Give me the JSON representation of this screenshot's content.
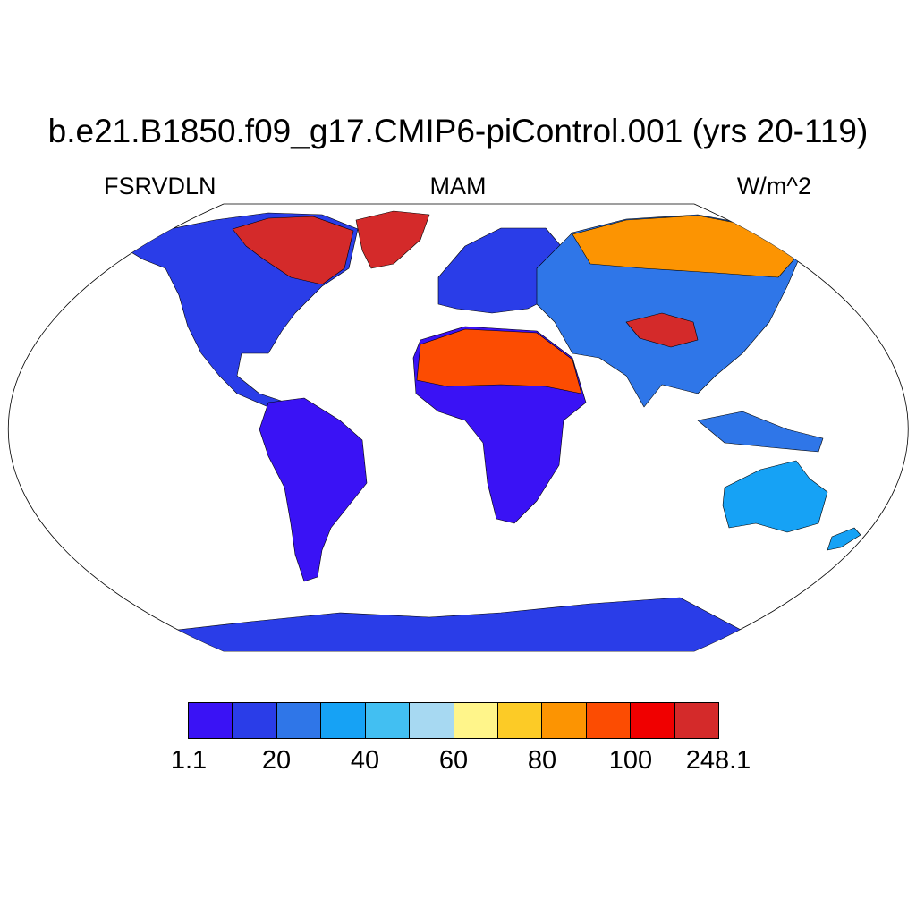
{
  "title": "b.e21.B1850.f09_g17.CMIP6-piControl.001 (yrs 20-119)",
  "subtitle_left": "FSRVDLN",
  "subtitle_center": "MAM",
  "subtitle_right": "W/m^2",
  "colorbar": {
    "colors": [
      "#3a12f5",
      "#2a3de8",
      "#2f76e8",
      "#16a2f5",
      "#42bff2",
      "#a7d9f2",
      "#fff58a",
      "#fccb26",
      "#fc9402",
      "#fc4c02",
      "#f00000",
      "#d42a2a"
    ],
    "labels": [
      "1.1",
      "20",
      "40",
      "60",
      "80",
      "100",
      "248.1"
    ]
  },
  "map_regions": {
    "ocean": "#ffffff",
    "continents": [
      {
        "name": "North America",
        "color": "#2a3de8"
      },
      {
        "name": "Greenland",
        "color": "#d42a2a"
      },
      {
        "name": "South America",
        "color": "#3a12f5"
      },
      {
        "name": "Europe",
        "color": "#2a3de8"
      },
      {
        "name": "Africa",
        "color": "#3a12f5"
      },
      {
        "name": "Sahara",
        "color": "#fc4c02"
      },
      {
        "name": "Asia",
        "color": "#2f76e8"
      },
      {
        "name": "Siberia",
        "color": "#fc9402"
      },
      {
        "name": "Tibetan Plateau",
        "color": "#d42a2a"
      },
      {
        "name": "Australia",
        "color": "#16a2f5"
      },
      {
        "name": "Antarctica",
        "color": "#2a3de8"
      }
    ]
  }
}
